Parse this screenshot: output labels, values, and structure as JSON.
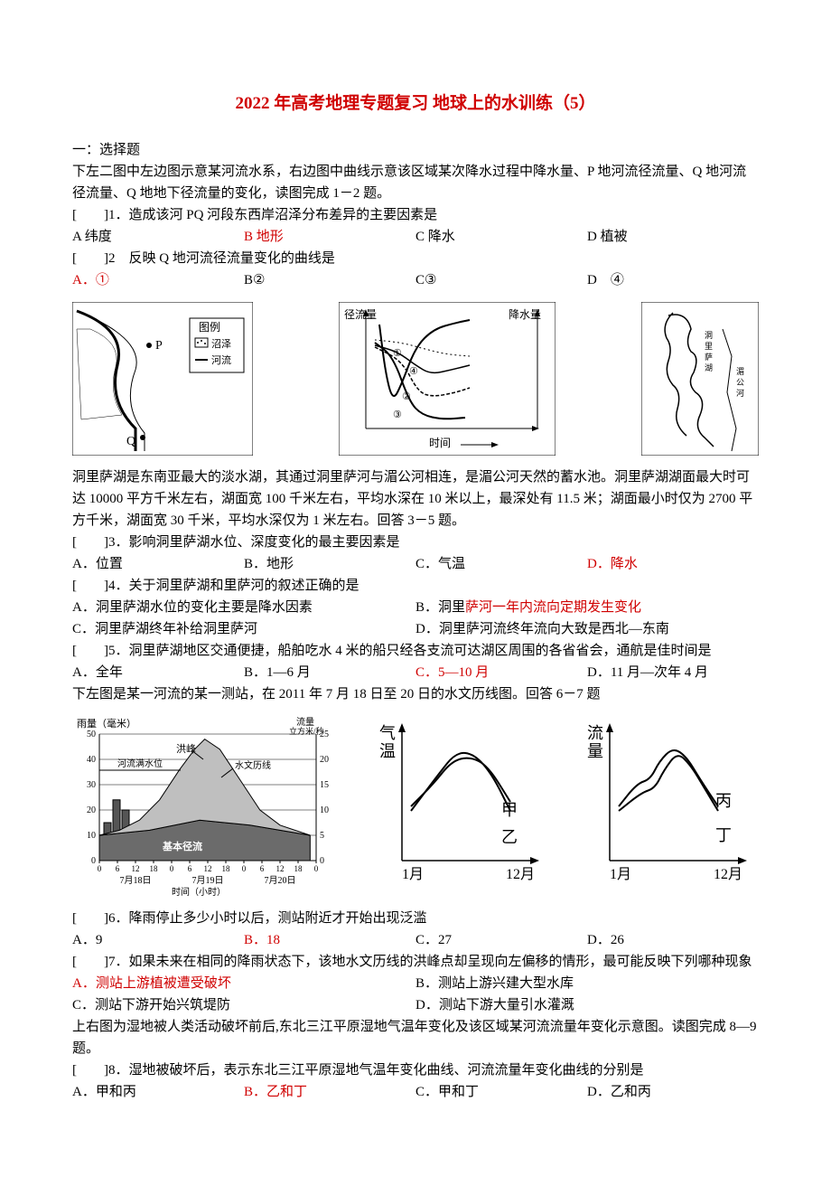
{
  "title": "2022 年高考地理专题复习 地球上的水训练（5）",
  "section1": "一：选择题",
  "intro12": "下左二图中左边图示意某河流水系，右边图中曲线示意该区域某次降水过程中降水量、P 地河流径流量、Q 地河流径流量、Q 地地下径流量的变化，读图完成 1－2 题。",
  "q1": {
    "prefix": "[　　]1．",
    "text": "造成该河 PQ 河段东西岸沼泽分布差异的主要因素是",
    "a": "A 纬度",
    "b": "B 地形",
    "c": "C 降水",
    "d": "D 植被",
    "ans": "b"
  },
  "q2": {
    "prefix": "[　　]2",
    "text": "　反映 Q 地河流径流量变化的曲线是",
    "a": "A．①",
    "b": "B②",
    "c": "C③",
    "d": "D　④",
    "ans": "a"
  },
  "fig1": {
    "legend_title": "图例",
    "legend_swamp": "沼泽",
    "legend_river": "河流",
    "p_label": "P",
    "q_label": "Q",
    "swamp_fill": "#888",
    "river_stroke": "#000"
  },
  "fig2": {
    "ylabel": "径流量",
    "ylabel2": "降水量",
    "xlabel": "时间",
    "labels": [
      "①",
      "②",
      "③",
      "④"
    ],
    "curves": {
      "1": [
        [
          10,
          95
        ],
        [
          30,
          80
        ],
        [
          48,
          30
        ],
        [
          62,
          15
        ],
        [
          85,
          10
        ],
        [
          110,
          12
        ]
      ],
      "2": [
        [
          10,
          90
        ],
        [
          40,
          75
        ],
        [
          58,
          40
        ],
        [
          75,
          35
        ],
        [
          100,
          40
        ],
        [
          115,
          45
        ]
      ],
      "3": [
        [
          10,
          98
        ],
        [
          40,
          95
        ],
        [
          65,
          88
        ],
        [
          90,
          82
        ],
        [
          115,
          80
        ]
      ],
      "4": [
        [
          10,
          92
        ],
        [
          35,
          85
        ],
        [
          55,
          70
        ],
        [
          72,
          60
        ],
        [
          95,
          65
        ],
        [
          115,
          70
        ]
      ]
    },
    "precip": [
      [
        15,
        5
      ],
      [
        22,
        60
      ],
      [
        30,
        90
      ],
      [
        40,
        70
      ],
      [
        55,
        30
      ],
      [
        75,
        10
      ],
      [
        100,
        3
      ],
      [
        115,
        0
      ]
    ]
  },
  "fig3": {
    "river_path": [
      [
        20,
        10
      ],
      [
        35,
        25
      ],
      [
        28,
        45
      ],
      [
        40,
        60
      ],
      [
        30,
        85
      ],
      [
        45,
        110
      ],
      [
        60,
        130
      ]
    ]
  },
  "intro35": "洞里萨湖是东南亚最大的淡水湖，其通过洞里萨河与湄公河相连，是湄公河天然的蓄水池。洞里萨湖湖面最大时可达 10000 平方千米左右，湖面宽 100 千米左右，平均水深在 10 米以上，最深处有 11.5 米；湖面最小时仅为 2700 平方千米，湖面宽 30 千米，平均水深仅为 1 米左右。回答 3－5 题。",
  "q3": {
    "prefix": "[　　]3．",
    "text": "影响洞里萨湖水位、深度变化的最主要因素是",
    "a": "A．位置",
    "b": "B．地形",
    "c": "C．气温",
    "d": "D．降水",
    "ans": "d"
  },
  "q4": {
    "prefix": "[　　]4．",
    "text": "关于洞里萨湖和里萨河的叙述正确的是",
    "a": "A．洞里萨湖水位的变化主要是降水因素",
    "b": "B．洞里萨河一年内流向定期发生变化",
    "b1": "B．洞里",
    "b2": "萨河一年内流向定期发生变化",
    "c": "C．洞里萨湖终年补给洞里萨河",
    "d": "D．洞里萨河流终年流向大致是西北—东南",
    "ans": "b"
  },
  "q5": {
    "prefix": "[　　]5．",
    "text": "洞里萨湖地区交通便捷，船舶吃水 4 米的船只经各支流可达湖区周围的各省省会，通航是佳时间是",
    "a": "A．全年",
    "b": "B．1—6 月",
    "c": "C．5—10 月",
    "d": "D．11 月—次年 4 月",
    "ans": "c"
  },
  "intro67": "下左图是某一河流的某一测站，在 2011 年 7 月 18 日至 20 日的水文历线图。回答 6－7 题",
  "hydrograph": {
    "type": "line",
    "title_rain": "雨量（毫米）",
    "title_flow": "流量\\n立方米/秒",
    "ylim_rain": [
      0,
      50
    ],
    "ytick_rain": [
      0,
      10,
      20,
      30,
      40,
      50
    ],
    "ylim_flow": [
      0,
      25
    ],
    "ytick_flow": [
      0,
      5,
      10,
      15,
      20,
      25
    ],
    "xlabel": "时间（小时）",
    "dates": [
      "7月18日",
      "7月19日",
      "7月20日"
    ],
    "ticks": [
      "0",
      "6",
      "12",
      "18",
      "0",
      "6",
      "12",
      "18",
      "0",
      "6",
      "12",
      "18",
      "0"
    ],
    "label_peak": "洪峰",
    "label_curve": "水文历线",
    "label_base": "基本径流",
    "label_stage": "河流满水位",
    "rain_bars": [
      {
        "x": 0,
        "h": 15
      },
      {
        "x": 1,
        "h": 24
      },
      {
        "x": 2,
        "h": 20
      },
      {
        "x": 3,
        "h": 8
      }
    ],
    "flood_curve": [
      [
        0,
        5
      ],
      [
        20,
        6
      ],
      [
        40,
        8
      ],
      [
        60,
        12
      ],
      [
        80,
        18
      ],
      [
        95,
        22
      ],
      [
        105,
        24
      ],
      [
        120,
        22
      ],
      [
        140,
        16
      ],
      [
        160,
        10
      ],
      [
        180,
        7
      ],
      [
        210,
        5
      ]
    ],
    "base_curve": [
      [
        0,
        5
      ],
      [
        50,
        6
      ],
      [
        100,
        8
      ],
      [
        150,
        7
      ],
      [
        210,
        5
      ]
    ],
    "colors": {
      "rain": "#555",
      "flood_fill": "#bfbfbf",
      "base_fill": "#6b6b6b",
      "line": "#000",
      "bg": "#ffffff"
    }
  },
  "tempchart1": {
    "ylabel": "气温",
    "xmin": "1月",
    "xmax": "12月",
    "curve_jia": {
      "label": "甲",
      "path": [
        [
          10,
          80
        ],
        [
          35,
          55
        ],
        [
          55,
          30
        ],
        [
          75,
          25
        ],
        [
          95,
          35
        ],
        [
          120,
          75
        ]
      ]
    },
    "curve_yi": {
      "label": "乙",
      "path": [
        [
          10,
          85
        ],
        [
          40,
          45
        ],
        [
          60,
          20
        ],
        [
          80,
          22
        ],
        [
          100,
          45
        ],
        [
          120,
          85
        ]
      ]
    }
  },
  "tempchart2": {
    "ylabel": "流量",
    "xmin": "1月",
    "xmax": "12月",
    "curve_bing": {
      "label": "丙",
      "path": [
        [
          10,
          80
        ],
        [
          30,
          55
        ],
        [
          45,
          50
        ],
        [
          55,
          30
        ],
        [
          70,
          15
        ],
        [
          85,
          25
        ],
        [
          100,
          50
        ],
        [
          120,
          80
        ]
      ]
    },
    "curve_ding": {
      "label": "丁",
      "path": [
        [
          10,
          85
        ],
        [
          35,
          65
        ],
        [
          50,
          60
        ],
        [
          60,
          40
        ],
        [
          75,
          20
        ],
        [
          90,
          35
        ],
        [
          105,
          60
        ],
        [
          120,
          85
        ]
      ]
    }
  },
  "q6": {
    "prefix": "[　　]6．",
    "text": "降雨停止多少小时以后，测站附近才开始出现泛滥",
    "a": "A．9",
    "b": "B．18",
    "c": "C．27",
    "d": "D．26",
    "ans": "b"
  },
  "q7": {
    "prefix": "[　　]7．",
    "text": "如果未来在相同的降雨状态下，该地水文历线的洪峰点却呈现向左偏移的情形，最可能反映下列哪种现象",
    "a": "A．测站上游植被遭受破坏",
    "b": "B．测站上游兴建大型水库",
    "c": "C．测站下游开始兴筑堤防",
    "d": "D．测站下游大量引水灌溉",
    "ans": "a"
  },
  "intro89": "上右图为湿地被人类活动破坏前后,东北三江平原湿地气温年变化及该区域某河流流量年变化示意图。读图完成 8—9 题。",
  "q8": {
    "prefix": "[　　]8．",
    "text": "湿地被破坏后，表示东北三江平原湿地气温年变化曲线、河流流量年变化曲线的分别是",
    "a": "A．甲和丙",
    "b": "B．乙和丁",
    "c": "C．甲和丁",
    "d": "D．乙和丙",
    "ans": "b"
  }
}
